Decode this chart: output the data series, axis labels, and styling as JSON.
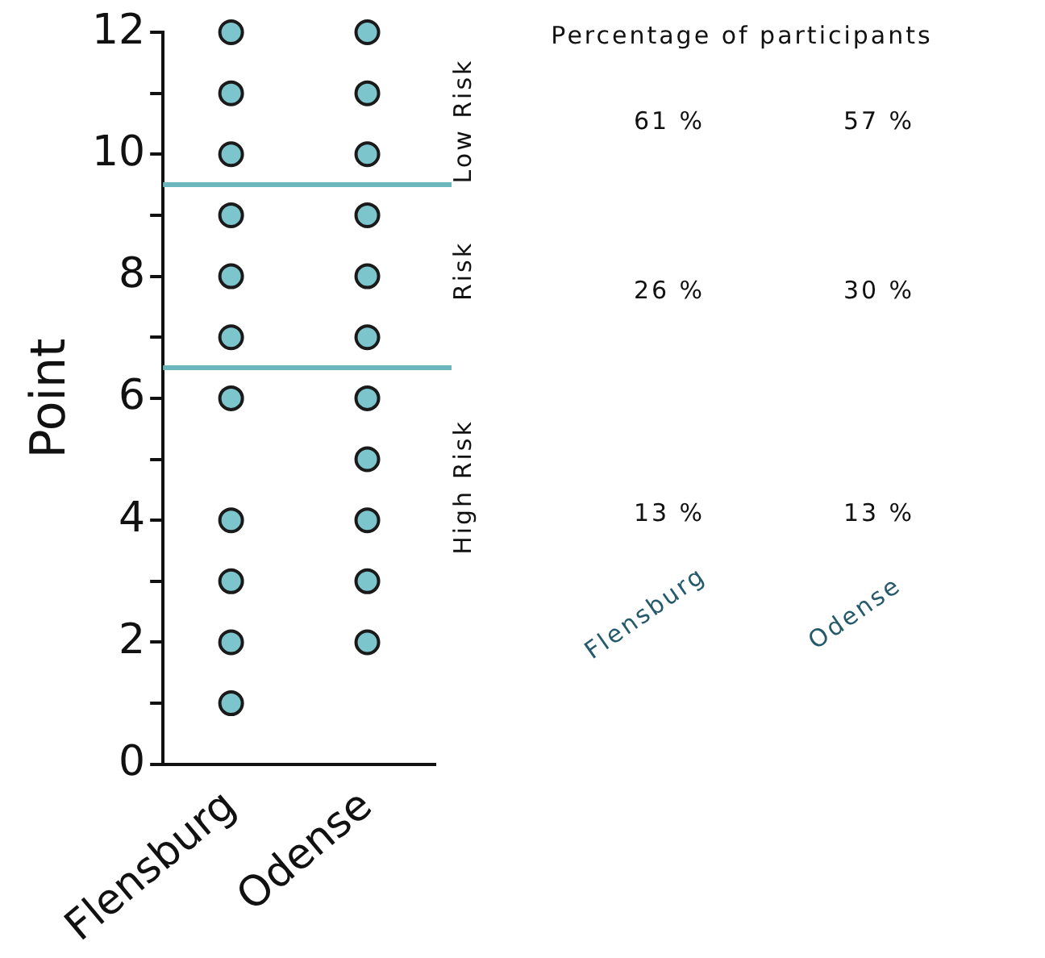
{
  "chart_data": [
    {
      "type": "scatter",
      "ylabel": "Point",
      "categories": [
        "Flensburg",
        "Odense"
      ],
      "series": [
        {
          "color": "#7cc5cc",
          "x": [
            "Flensburg",
            "Flensburg",
            "Flensburg",
            "Flensburg",
            "Flensburg",
            "Flensburg",
            "Flensburg",
            "Flensburg",
            "Flensburg",
            "Flensburg",
            "Flensburg"
          ],
          "values": [
            12,
            11,
            10,
            9,
            8,
            7,
            6,
            4,
            3,
            2,
            1
          ]
        },
        {
          "color": "#7cc5cc",
          "x": [
            "Odense",
            "Odense",
            "Odense",
            "Odense",
            "Odense",
            "Odense",
            "Odense",
            "Odense",
            "Odense",
            "Odense",
            "Odense"
          ],
          "values": [
            12,
            11,
            10,
            9,
            8,
            7,
            6,
            5,
            4,
            3,
            2
          ]
        }
      ],
      "ylim": [
        0,
        12
      ],
      "yticks": [
        0,
        {
          "value": 1,
          "label": null
        },
        2,
        {
          "value": 3,
          "label": null
        },
        4,
        {
          "value": 5,
          "label": null
        },
        6,
        {
          "value": 7,
          "label": null
        },
        8,
        {
          "value": 9,
          "label": null
        },
        10,
        {
          "value": 11,
          "label": null
        },
        12
      ],
      "marker": "circle",
      "grid": false,
      "legend": false,
      "ref_lines": [
        {
          "axis": "y",
          "value": 9.5,
          "color": "#6cb6bd"
        },
        {
          "axis": "y",
          "value": 6.5,
          "color": "#6cb6bd"
        }
      ]
    },
    {
      "type": "other",
      "title": "Percentage of participants",
      "categories": [
        "Flensburg",
        "Odense"
      ],
      "y_categories": [
        "Low Risk",
        "Risk",
        "High Risk"
      ],
      "cell_labels": [
        [
          "61 %",
          "57 %"
        ],
        [
          "26 %",
          "30 %"
        ],
        [
          "13 %",
          "13 %"
        ]
      ]
    }
  ]
}
